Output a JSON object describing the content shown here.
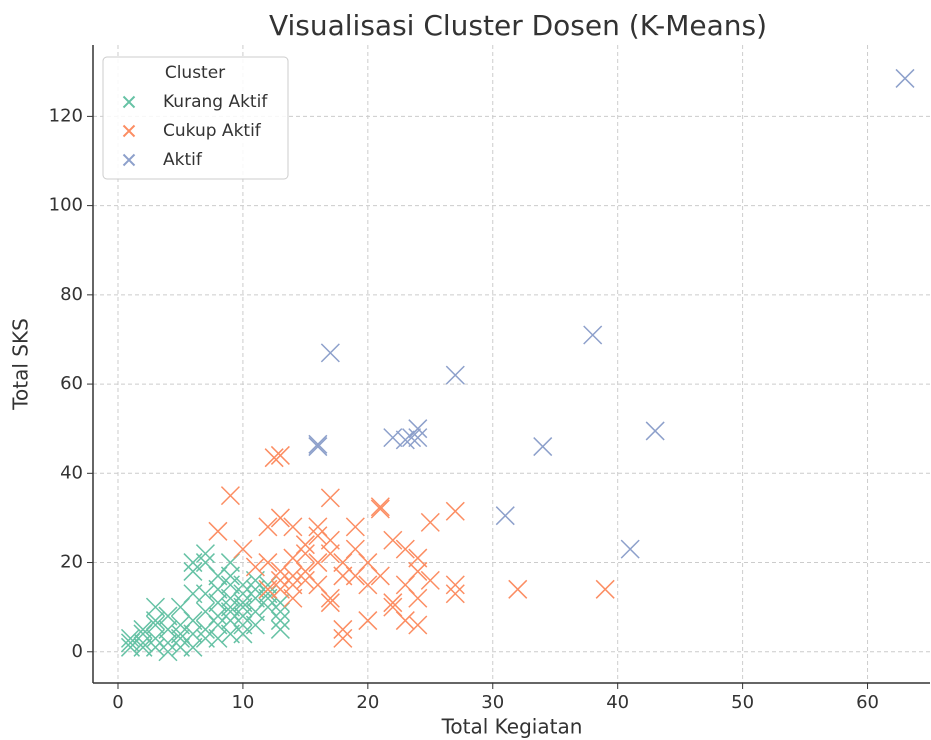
{
  "chart_data": {
    "type": "scatter",
    "title": "Visualisasi Cluster Dosen (K-Means)",
    "x_label": "Total Kegiatan",
    "y_label": "Total SKS",
    "xlim": [
      -2,
      65
    ],
    "ylim": [
      -7,
      136
    ],
    "xticks": [
      0,
      10,
      20,
      30,
      40,
      50,
      60
    ],
    "yticks": [
      0,
      20,
      40,
      60,
      80,
      100,
      120
    ],
    "grid": true,
    "legend_title": "Cluster",
    "legend": "upper left",
    "series": [
      {
        "name": "Kurang Aktif",
        "color": "#66c2a5",
        "x": [
          1,
          1,
          1,
          2,
          2,
          2,
          3,
          3,
          3,
          3,
          4,
          4,
          4,
          4,
          5,
          5,
          5,
          5,
          6,
          6,
          6,
          6,
          6,
          7,
          7,
          7,
          7,
          7,
          8,
          8,
          8,
          8,
          9,
          9,
          9,
          9,
          9,
          9,
          10,
          10,
          10,
          10,
          10,
          10,
          11,
          11,
          11,
          11,
          12,
          12,
          12,
          13,
          13,
          13,
          13,
          9,
          8,
          6,
          5,
          3,
          2,
          11,
          12,
          10,
          7,
          8,
          9
        ],
        "values": [
          1,
          3,
          2,
          2,
          4,
          5,
          3,
          6,
          10,
          1,
          2,
          0,
          5,
          8,
          3,
          6,
          10,
          1,
          4,
          7,
          13,
          18,
          20,
          22,
          20,
          5,
          9,
          3,
          8,
          11,
          14,
          6,
          9,
          12,
          15,
          17,
          20,
          4,
          6,
          10,
          13,
          15,
          8,
          11,
          12,
          9,
          14,
          6,
          10,
          12,
          15,
          5,
          7,
          9,
          11,
          7,
          3,
          1,
          4,
          7,
          1,
          16,
          13,
          4,
          13,
          17,
          10
        ]
      },
      {
        "name": "Cukup Aktif",
        "color": "#fc8d62",
        "x": [
          9,
          12.5,
          13,
          17,
          21,
          21,
          27,
          25,
          13,
          14,
          12,
          8,
          10,
          16,
          16,
          19,
          15,
          14,
          12,
          11,
          13,
          13,
          14,
          14,
          15,
          15,
          13,
          12,
          16,
          17,
          18,
          19,
          19,
          20,
          18,
          17,
          17,
          18,
          18,
          20,
          21,
          22,
          23,
          24,
          24,
          23,
          22,
          22,
          23,
          24,
          24,
          25,
          27,
          27,
          32,
          39,
          16,
          14,
          15,
          17,
          20
        ],
        "values": [
          35,
          43.5,
          44,
          34.5,
          32,
          32.5,
          31.5,
          29,
          30,
          28,
          28,
          27,
          23,
          28,
          26,
          28,
          22,
          21,
          20,
          19,
          18,
          16,
          15,
          17,
          18,
          16,
          14,
          14,
          20,
          22,
          20,
          23,
          17,
          20,
          17,
          12,
          11,
          5,
          3,
          7,
          17,
          25,
          23,
          21,
          18,
          15,
          10,
          11,
          7,
          6,
          12,
          16,
          13,
          15,
          14,
          14,
          15,
          12,
          24,
          25,
          15
        ]
      },
      {
        "name": "Aktif",
        "color": "#8da0cb",
        "x": [
          63,
          17,
          27,
          38,
          16,
          16,
          22,
          23,
          24,
          24,
          23.5,
          34,
          43,
          31,
          41
        ],
        "values": [
          128.5,
          67,
          62,
          71,
          46.5,
          46,
          48,
          47.5,
          48,
          50,
          48,
          46,
          49.5,
          30.5,
          23
        ]
      }
    ]
  }
}
